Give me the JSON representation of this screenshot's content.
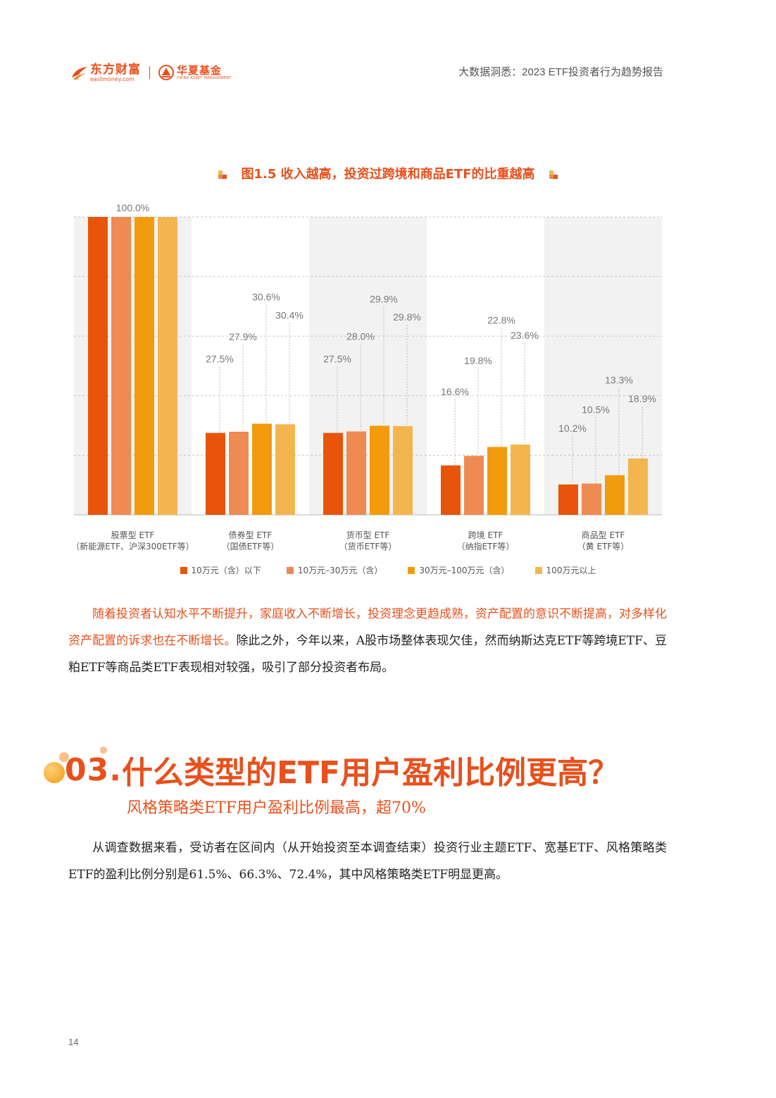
{
  "header": {
    "logo_left_cn": "东方财富",
    "logo_left_en": "eastmoney.com",
    "logo_right_cn": "华夏基金",
    "logo_right_en": "CHINA ASSET MANAGEMENT",
    "report_title": "大数据洞悉：2023 ETF投资者行为趋势报告"
  },
  "chart_title": "图1.5  收入越高，投资过跨境和商品ETF的比重越高",
  "chart_data": {
    "type": "bar",
    "title": "图1.5  收入越高，投资过跨境和商品ETF的比重越高",
    "categories": [
      {
        "line1": "股票型 ETF",
        "line2": "（新能源ETF、沪深300ETF等）"
      },
      {
        "line1": "债券型 ETF",
        "line2": "（国债ETF等）"
      },
      {
        "line1": "货币型 ETF",
        "line2": "（货币ETF等）"
      },
      {
        "line1": "跨境 ETF",
        "line2": "（纳指ETF等）"
      },
      {
        "line1": "商品型 ETF",
        "line2": "（黄 ETF等）"
      }
    ],
    "series": [
      {
        "name": "10万元（含）以下",
        "color": "#e8540a",
        "values": [
          100.0,
          27.5,
          27.5,
          16.6,
          10.2
        ]
      },
      {
        "name": "10万元–30万元（含）",
        "color": "#ee8a52",
        "values": [
          100.0,
          27.9,
          28.0,
          19.8,
          10.5
        ]
      },
      {
        "name": "30万元–100万元（含）",
        "color": "#f29b0d",
        "values": [
          100.0,
          30.6,
          29.9,
          22.8,
          13.3
        ]
      },
      {
        "name": "100万元以上",
        "color": "#f4b54f",
        "values": [
          100.0,
          30.4,
          29.8,
          23.6,
          18.9
        ]
      }
    ],
    "labels": [
      [
        "100.0%",
        "",
        "",
        ""
      ],
      [
        "27.5%",
        "27.9%",
        "30.6%",
        "30.4%"
      ],
      [
        "27.5%",
        "28.0%",
        "29.9%",
        "29.8%"
      ],
      [
        "16.6%",
        "19.8%",
        "22.8%",
        "23.6%"
      ],
      [
        "10.2%",
        "10.5%",
        "13.3%",
        "18.9%"
      ]
    ],
    "ylim": [
      0,
      100
    ],
    "grid": true,
    "legend_position": "bottom"
  },
  "para1": {
    "highlight": "随着投资者认知水平不断提升，家庭收入不断增长，投资理念更趋成熟，资产配置的意识不断提高，对多样化资产配置的诉求也在不断增长。",
    "rest": "除此之外，今年以来，A股市场整体表现欠佳，然而纳斯达克ETF等跨境ETF、豆粕ETF等商品类ETF表现相对较强，吸引了部分投资者布局。"
  },
  "section": {
    "number": "03.",
    "title": "什么类型的ETF用户盈利比例更高？",
    "subtitle": "风格策略类ETF用户盈利比例最高，超70%"
  },
  "para2": "从调查数据来看，受访者在区间内（从开始投资至本调查结束）投资行业主题ETF、宽基ETF、风格策略类ETF的盈利比例分别是61.5%、66.3%、72.4%，其中风格策略类ETF明显更高。",
  "page_number": "14"
}
